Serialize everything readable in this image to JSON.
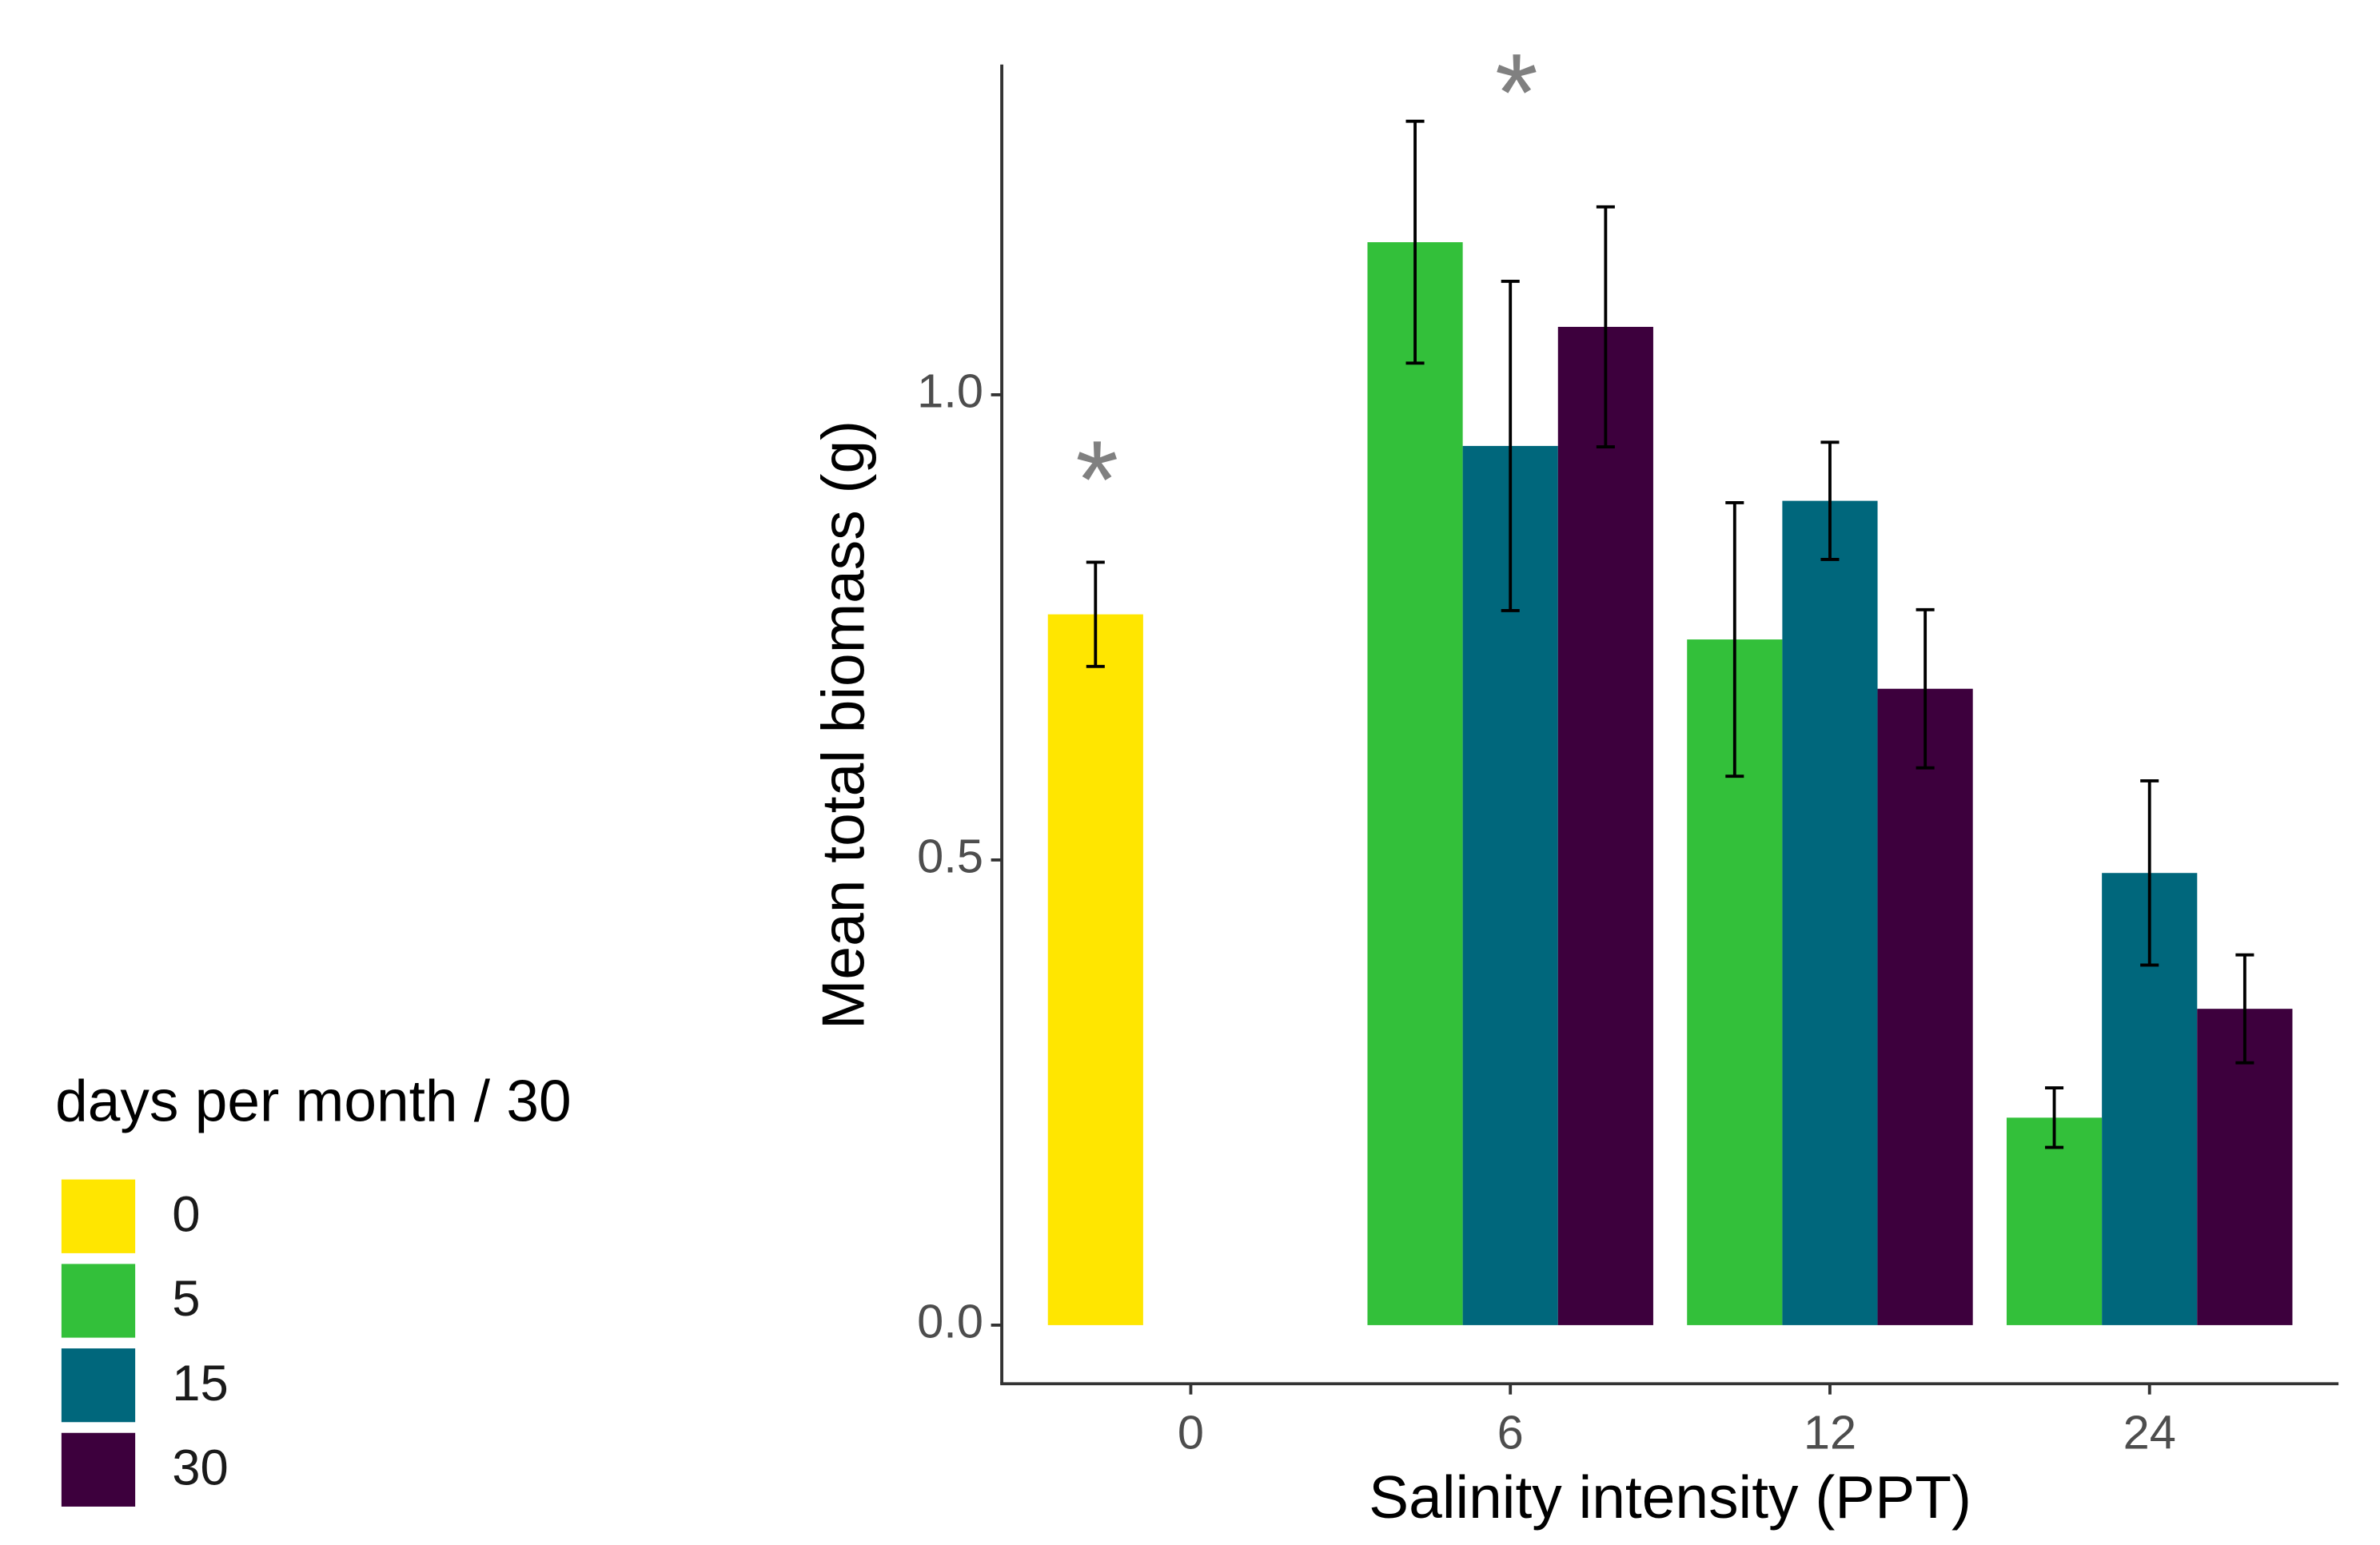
{
  "chart_data": {
    "type": "bar",
    "x_label": "Salinity intensity (PPT)",
    "y_label": "Mean total biomass (g)",
    "categories": [
      "0",
      "6",
      "12",
      "24"
    ],
    "series": [
      {
        "name": "0",
        "color": "#ffe600",
        "values": [
          0.764,
          null,
          null,
          null
        ],
        "errors": [
          0.056,
          null,
          null,
          null
        ]
      },
      {
        "name": "5",
        "color": "#33c03a",
        "values": [
          null,
          1.164,
          0.737,
          0.223
        ],
        "errors": [
          null,
          0.13,
          0.147,
          0.032
        ]
      },
      {
        "name": "15",
        "color": "#00677c",
        "values": [
          null,
          0.945,
          0.886,
          0.486
        ],
        "errors": [
          null,
          0.177,
          0.063,
          0.099
        ]
      },
      {
        "name": "30",
        "color": "#3d003d",
        "values": [
          null,
          1.073,
          0.684,
          0.34
        ],
        "errors": [
          null,
          0.129,
          0.085,
          0.058
        ]
      }
    ],
    "legend_title": "days per month / 30",
    "legend_position": "left",
    "annotations": [
      "*",
      "*"
    ],
    "ylim": [
      -0.063,
      1.355
    ],
    "yticks": [
      {
        "value": 0,
        "label": "0.0"
      },
      {
        "value": 0.5,
        "label": "0.5"
      },
      {
        "value": 1,
        "label": "1.0"
      }
    ],
    "grid": false
  }
}
